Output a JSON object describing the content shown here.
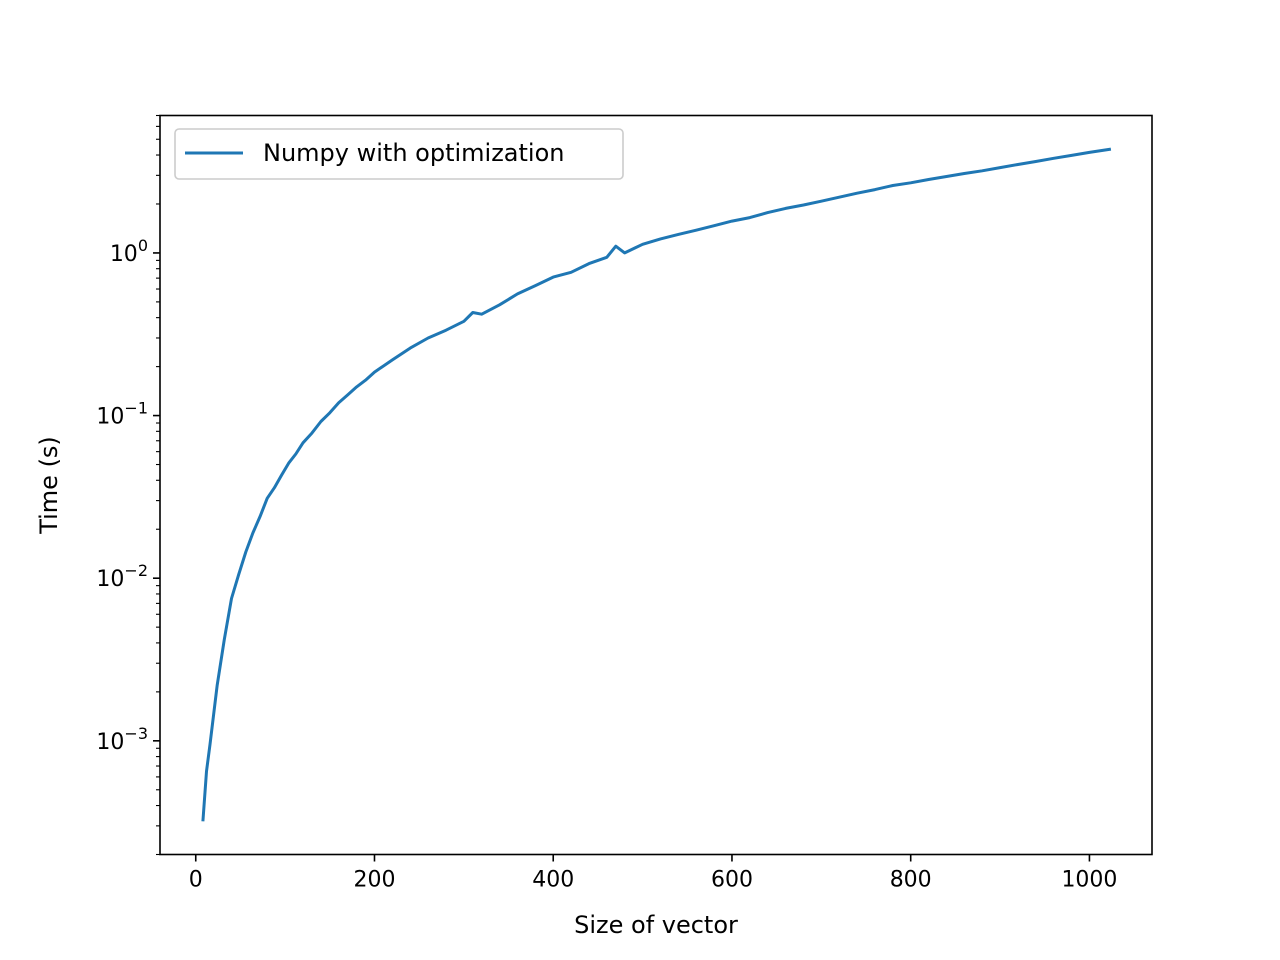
{
  "chart_data": {
    "type": "line",
    "xlabel": "Size of vector",
    "ylabel": "Time (s)",
    "xscale": "linear",
    "yscale": "log",
    "xlim": [
      -40,
      1070
    ],
    "ylim": [
      0.0002,
      7
    ],
    "grid": false,
    "legend_position": "top-left",
    "x_ticks": [
      {
        "value": 0,
        "label": "0"
      },
      {
        "value": 200,
        "label": "200"
      },
      {
        "value": 400,
        "label": "400"
      },
      {
        "value": 600,
        "label": "600"
      },
      {
        "value": 800,
        "label": "800"
      },
      {
        "value": 1000,
        "label": "1000"
      }
    ],
    "y_ticks": [
      {
        "value": 0.001,
        "base": "10",
        "exponent": "−3"
      },
      {
        "value": 0.01,
        "base": "10",
        "exponent": "−2"
      },
      {
        "value": 0.1,
        "base": "10",
        "exponent": "−1"
      },
      {
        "value": 1,
        "base": "10",
        "exponent": "0"
      }
    ],
    "series": [
      {
        "name": "Numpy with optimization",
        "color": "#1f77b4",
        "x": [
          8,
          12,
          16,
          24,
          32,
          40,
          48,
          56,
          64,
          72,
          80,
          88,
          96,
          104,
          112,
          120,
          130,
          140,
          150,
          160,
          170,
          180,
          190,
          200,
          220,
          240,
          260,
          280,
          300,
          310,
          320,
          340,
          360,
          380,
          400,
          420,
          440,
          460,
          470,
          480,
          500,
          520,
          540,
          560,
          580,
          600,
          620,
          640,
          660,
          680,
          700,
          720,
          740,
          760,
          780,
          800,
          820,
          840,
          860,
          880,
          900,
          920,
          940,
          960,
          980,
          1000,
          1024
        ],
        "y": [
          0.00032,
          0.00065,
          0.00095,
          0.0022,
          0.0042,
          0.0075,
          0.0105,
          0.0145,
          0.019,
          0.024,
          0.031,
          0.036,
          0.043,
          0.051,
          0.058,
          0.068,
          0.078,
          0.092,
          0.104,
          0.12,
          0.134,
          0.15,
          0.165,
          0.185,
          0.22,
          0.26,
          0.3,
          0.335,
          0.38,
          0.43,
          0.42,
          0.48,
          0.56,
          0.63,
          0.71,
          0.76,
          0.86,
          0.94,
          1.1,
          1.0,
          1.13,
          1.22,
          1.3,
          1.38,
          1.47,
          1.57,
          1.65,
          1.77,
          1.88,
          1.97,
          2.08,
          2.2,
          2.33,
          2.45,
          2.6,
          2.7,
          2.83,
          2.95,
          3.08,
          3.2,
          3.35,
          3.5,
          3.65,
          3.82,
          3.98,
          4.15,
          4.35
        ]
      }
    ]
  }
}
